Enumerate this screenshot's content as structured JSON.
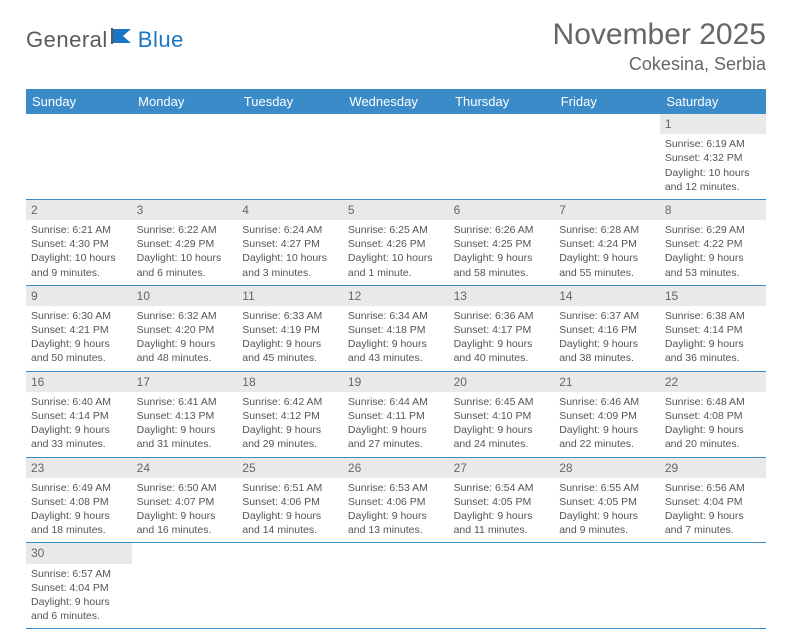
{
  "logo": {
    "word1": "General",
    "word2": "Blue"
  },
  "title": "November 2025",
  "location": "Cokesina, Serbia",
  "dayHeaders": [
    "Sunday",
    "Monday",
    "Tuesday",
    "Wednesday",
    "Thursday",
    "Friday",
    "Saturday"
  ],
  "colors": {
    "headerBg": "#3b8bc9",
    "headerText": "#ffffff",
    "border": "#3b8bc9",
    "dayNumBg": "#e9e9e9",
    "text": "#555555",
    "titleText": "#666666",
    "logoGray": "#5a5a5a",
    "logoBlue": "#1976c5"
  },
  "grid": [
    [
      {
        "empty": true
      },
      {
        "empty": true
      },
      {
        "empty": true
      },
      {
        "empty": true
      },
      {
        "empty": true
      },
      {
        "empty": true
      },
      {
        "n": "1",
        "sr": "Sunrise: 6:19 AM",
        "ss": "Sunset: 4:32 PM",
        "d1": "Daylight: 10 hours",
        "d2": "and 12 minutes."
      }
    ],
    [
      {
        "n": "2",
        "sr": "Sunrise: 6:21 AM",
        "ss": "Sunset: 4:30 PM",
        "d1": "Daylight: 10 hours",
        "d2": "and 9 minutes."
      },
      {
        "n": "3",
        "sr": "Sunrise: 6:22 AM",
        "ss": "Sunset: 4:29 PM",
        "d1": "Daylight: 10 hours",
        "d2": "and 6 minutes."
      },
      {
        "n": "4",
        "sr": "Sunrise: 6:24 AM",
        "ss": "Sunset: 4:27 PM",
        "d1": "Daylight: 10 hours",
        "d2": "and 3 minutes."
      },
      {
        "n": "5",
        "sr": "Sunrise: 6:25 AM",
        "ss": "Sunset: 4:26 PM",
        "d1": "Daylight: 10 hours",
        "d2": "and 1 minute."
      },
      {
        "n": "6",
        "sr": "Sunrise: 6:26 AM",
        "ss": "Sunset: 4:25 PM",
        "d1": "Daylight: 9 hours",
        "d2": "and 58 minutes."
      },
      {
        "n": "7",
        "sr": "Sunrise: 6:28 AM",
        "ss": "Sunset: 4:24 PM",
        "d1": "Daylight: 9 hours",
        "d2": "and 55 minutes."
      },
      {
        "n": "8",
        "sr": "Sunrise: 6:29 AM",
        "ss": "Sunset: 4:22 PM",
        "d1": "Daylight: 9 hours",
        "d2": "and 53 minutes."
      }
    ],
    [
      {
        "n": "9",
        "sr": "Sunrise: 6:30 AM",
        "ss": "Sunset: 4:21 PM",
        "d1": "Daylight: 9 hours",
        "d2": "and 50 minutes."
      },
      {
        "n": "10",
        "sr": "Sunrise: 6:32 AM",
        "ss": "Sunset: 4:20 PM",
        "d1": "Daylight: 9 hours",
        "d2": "and 48 minutes."
      },
      {
        "n": "11",
        "sr": "Sunrise: 6:33 AM",
        "ss": "Sunset: 4:19 PM",
        "d1": "Daylight: 9 hours",
        "d2": "and 45 minutes."
      },
      {
        "n": "12",
        "sr": "Sunrise: 6:34 AM",
        "ss": "Sunset: 4:18 PM",
        "d1": "Daylight: 9 hours",
        "d2": "and 43 minutes."
      },
      {
        "n": "13",
        "sr": "Sunrise: 6:36 AM",
        "ss": "Sunset: 4:17 PM",
        "d1": "Daylight: 9 hours",
        "d2": "and 40 minutes."
      },
      {
        "n": "14",
        "sr": "Sunrise: 6:37 AM",
        "ss": "Sunset: 4:16 PM",
        "d1": "Daylight: 9 hours",
        "d2": "and 38 minutes."
      },
      {
        "n": "15",
        "sr": "Sunrise: 6:38 AM",
        "ss": "Sunset: 4:14 PM",
        "d1": "Daylight: 9 hours",
        "d2": "and 36 minutes."
      }
    ],
    [
      {
        "n": "16",
        "sr": "Sunrise: 6:40 AM",
        "ss": "Sunset: 4:14 PM",
        "d1": "Daylight: 9 hours",
        "d2": "and 33 minutes."
      },
      {
        "n": "17",
        "sr": "Sunrise: 6:41 AM",
        "ss": "Sunset: 4:13 PM",
        "d1": "Daylight: 9 hours",
        "d2": "and 31 minutes."
      },
      {
        "n": "18",
        "sr": "Sunrise: 6:42 AM",
        "ss": "Sunset: 4:12 PM",
        "d1": "Daylight: 9 hours",
        "d2": "and 29 minutes."
      },
      {
        "n": "19",
        "sr": "Sunrise: 6:44 AM",
        "ss": "Sunset: 4:11 PM",
        "d1": "Daylight: 9 hours",
        "d2": "and 27 minutes."
      },
      {
        "n": "20",
        "sr": "Sunrise: 6:45 AM",
        "ss": "Sunset: 4:10 PM",
        "d1": "Daylight: 9 hours",
        "d2": "and 24 minutes."
      },
      {
        "n": "21",
        "sr": "Sunrise: 6:46 AM",
        "ss": "Sunset: 4:09 PM",
        "d1": "Daylight: 9 hours",
        "d2": "and 22 minutes."
      },
      {
        "n": "22",
        "sr": "Sunrise: 6:48 AM",
        "ss": "Sunset: 4:08 PM",
        "d1": "Daylight: 9 hours",
        "d2": "and 20 minutes."
      }
    ],
    [
      {
        "n": "23",
        "sr": "Sunrise: 6:49 AM",
        "ss": "Sunset: 4:08 PM",
        "d1": "Daylight: 9 hours",
        "d2": "and 18 minutes."
      },
      {
        "n": "24",
        "sr": "Sunrise: 6:50 AM",
        "ss": "Sunset: 4:07 PM",
        "d1": "Daylight: 9 hours",
        "d2": "and 16 minutes."
      },
      {
        "n": "25",
        "sr": "Sunrise: 6:51 AM",
        "ss": "Sunset: 4:06 PM",
        "d1": "Daylight: 9 hours",
        "d2": "and 14 minutes."
      },
      {
        "n": "26",
        "sr": "Sunrise: 6:53 AM",
        "ss": "Sunset: 4:06 PM",
        "d1": "Daylight: 9 hours",
        "d2": "and 13 minutes."
      },
      {
        "n": "27",
        "sr": "Sunrise: 6:54 AM",
        "ss": "Sunset: 4:05 PM",
        "d1": "Daylight: 9 hours",
        "d2": "and 11 minutes."
      },
      {
        "n": "28",
        "sr": "Sunrise: 6:55 AM",
        "ss": "Sunset: 4:05 PM",
        "d1": "Daylight: 9 hours",
        "d2": "and 9 minutes."
      },
      {
        "n": "29",
        "sr": "Sunrise: 6:56 AM",
        "ss": "Sunset: 4:04 PM",
        "d1": "Daylight: 9 hours",
        "d2": "and 7 minutes."
      }
    ],
    [
      {
        "n": "30",
        "sr": "Sunrise: 6:57 AM",
        "ss": "Sunset: 4:04 PM",
        "d1": "Daylight: 9 hours",
        "d2": "and 6 minutes."
      },
      {
        "empty": true
      },
      {
        "empty": true
      },
      {
        "empty": true
      },
      {
        "empty": true
      },
      {
        "empty": true
      },
      {
        "empty": true
      }
    ]
  ]
}
